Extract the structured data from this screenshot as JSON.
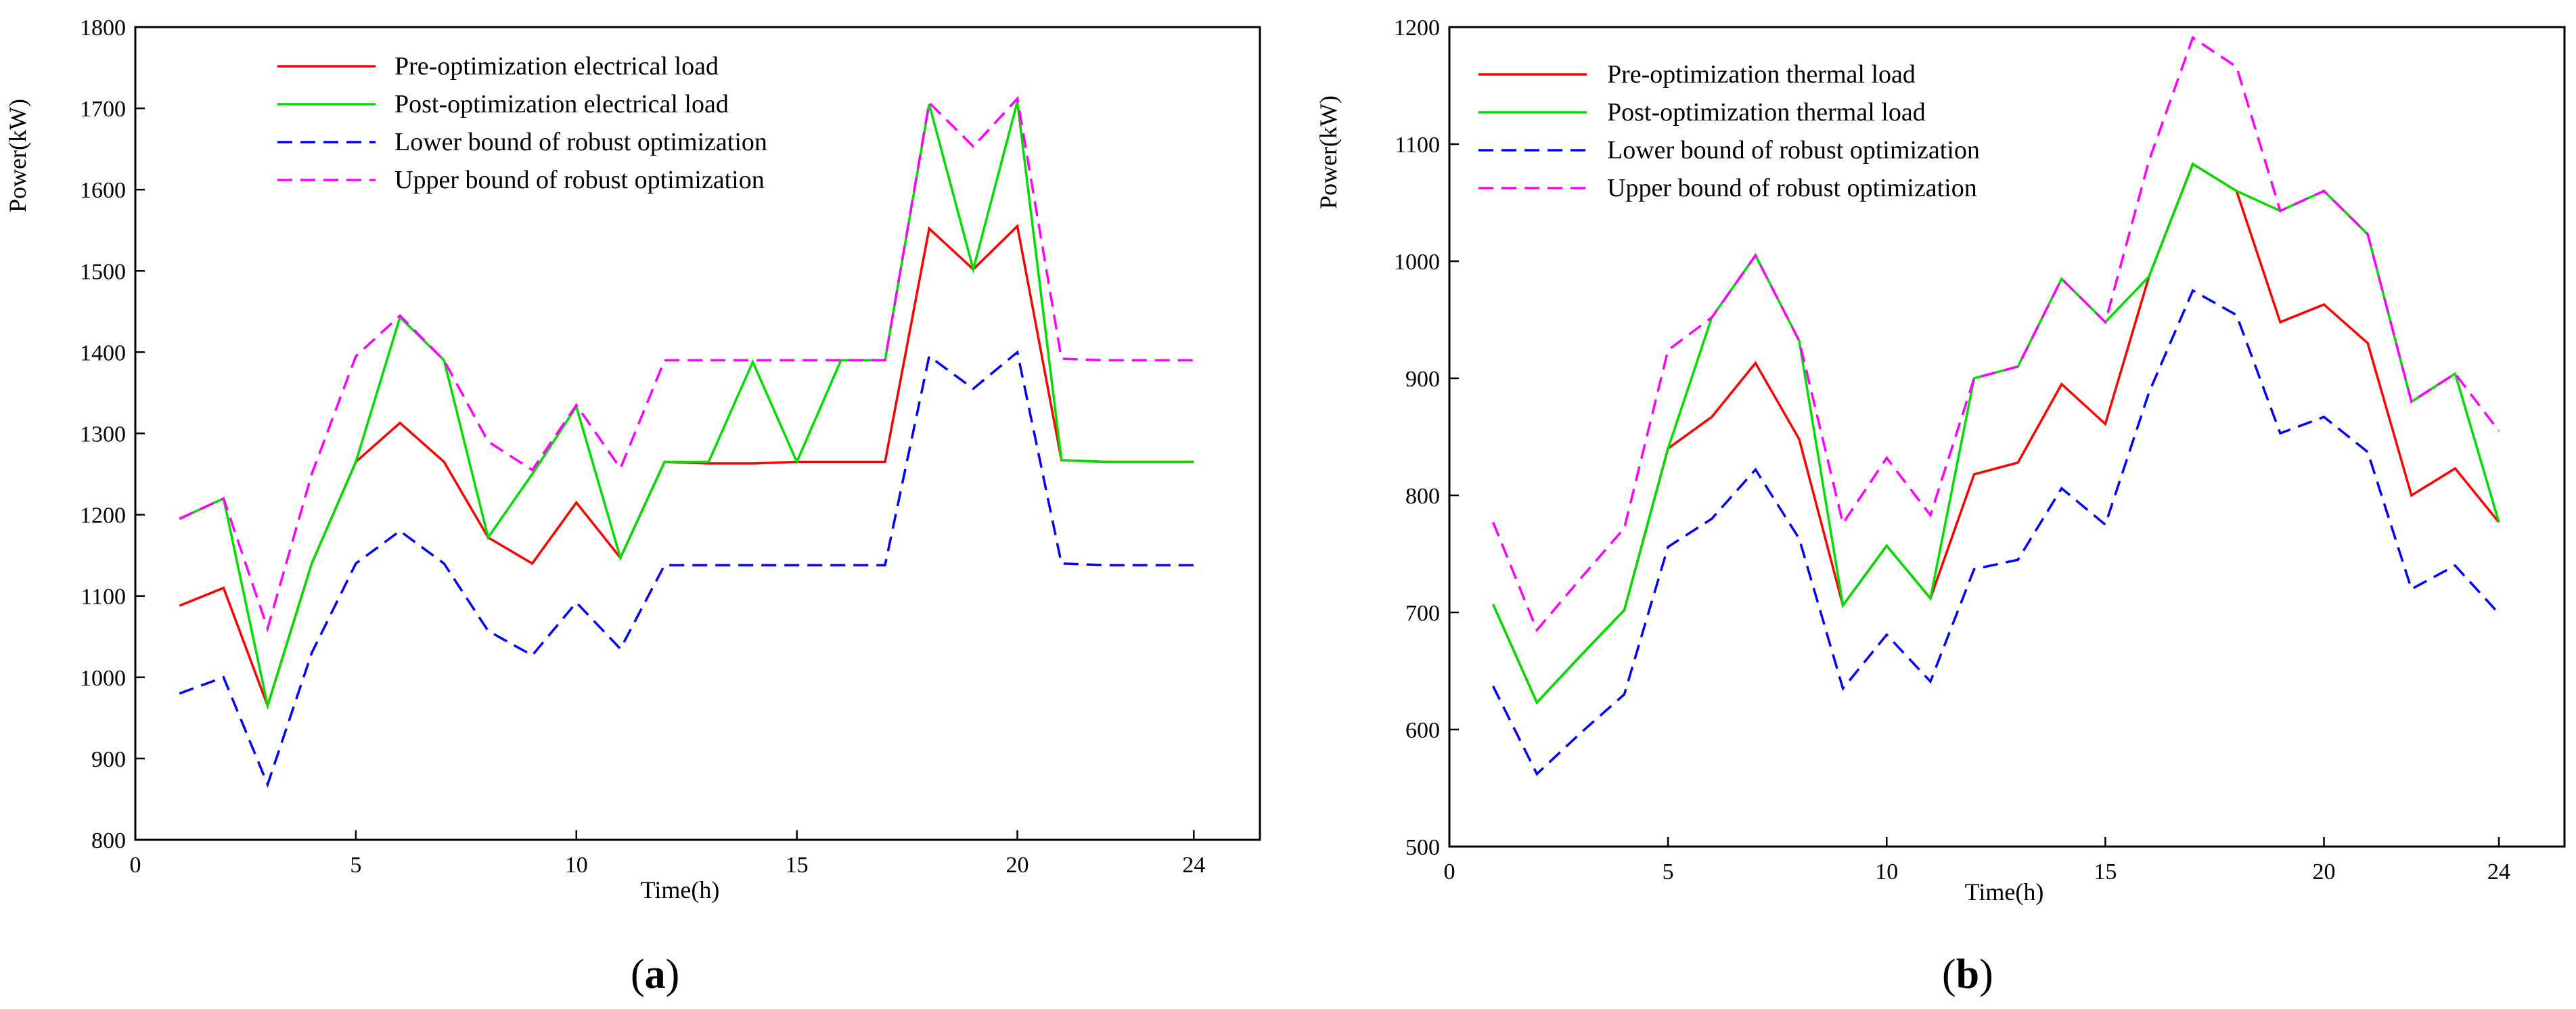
{
  "chart_data": [
    {
      "type": "line",
      "panel": "a",
      "caption_open": "(",
      "caption_letter": "a",
      "caption_close": ")",
      "xlabel": "Time(h)",
      "ylabel": "Power(kW)",
      "xlim": [
        0,
        25.5
      ],
      "ylim": [
        800,
        1800
      ],
      "xticks": [
        0,
        5,
        10,
        15,
        20,
        24
      ],
      "yticks": [
        800,
        900,
        1000,
        1100,
        1200,
        1300,
        1400,
        1500,
        1600,
        1700,
        1800
      ],
      "legend_position": "top-left",
      "x": [
        1,
        2,
        3,
        4,
        5,
        6,
        7,
        8,
        9,
        10,
        11,
        12,
        13,
        14,
        15,
        16,
        17,
        18,
        19,
        20,
        21,
        22,
        23,
        24
      ],
      "series": [
        {
          "name": "Pre-optimization electrical load",
          "color": "#ff0000",
          "dash": "solid",
          "values": [
            1088,
            1110,
            965,
            1140,
            1265,
            1313,
            1265,
            1172,
            1140,
            1215,
            1147,
            1265,
            1263,
            1263,
            1265,
            1265,
            1265,
            1552,
            1502,
            1555,
            1267,
            1265,
            1265,
            1265
          ]
        },
        {
          "name": "Post-optimization electrical load",
          "color": "#00dd00",
          "dash": "solid",
          "values": [
            1195,
            1220,
            965,
            1140,
            1265,
            1443,
            1390,
            1172,
            1250,
            1333,
            1147,
            1265,
            1265,
            1388,
            1265,
            1390,
            1390,
            1705,
            1502,
            1708,
            1267,
            1265,
            1265,
            1265
          ]
        },
        {
          "name": "Lower bound of robust optimization",
          "color": "#0000ff",
          "dash": "dashed",
          "values": [
            980,
            1000,
            868,
            1030,
            1140,
            1180,
            1140,
            1057,
            1027,
            1092,
            1035,
            1138,
            1138,
            1138,
            1138,
            1138,
            1138,
            1395,
            1355,
            1400,
            1140,
            1138,
            1138,
            1138
          ]
        },
        {
          "name": "Upper bound of robust optimization",
          "color": "#ff00ff",
          "dash": "dashed",
          "values": [
            1195,
            1220,
            1060,
            1250,
            1395,
            1445,
            1390,
            1290,
            1255,
            1335,
            1257,
            1390,
            1390,
            1390,
            1390,
            1390,
            1390,
            1707,
            1653,
            1712,
            1392,
            1390,
            1390,
            1390
          ]
        }
      ]
    },
    {
      "type": "line",
      "panel": "b",
      "caption_open": "(",
      "caption_letter": "b",
      "caption_close": ")",
      "xlabel": "Time(h)",
      "ylabel": "Power(kW)",
      "xlim": [
        0,
        25.5
      ],
      "ylim": [
        500,
        1200
      ],
      "xticks": [
        0,
        5,
        10,
        15,
        20,
        24
      ],
      "yticks": [
        500,
        600,
        700,
        800,
        900,
        1000,
        1100,
        1200
      ],
      "legend_position": "top-left",
      "x": [
        1,
        2,
        3,
        4,
        5,
        6,
        7,
        8,
        9,
        10,
        11,
        12,
        13,
        14,
        15,
        16,
        17,
        18,
        19,
        20,
        21,
        22,
        23,
        24
      ],
      "series": [
        {
          "name": "Pre-optimization thermal load",
          "color": "#ff0000",
          "dash": "solid",
          "values": [
            707,
            623,
            663,
            702,
            840,
            867,
            913,
            848,
            706,
            757,
            712,
            818,
            828,
            895,
            861,
            987,
            1083,
            1060,
            948,
            963,
            930,
            800,
            823,
            777
          ]
        },
        {
          "name": "Post-optimization thermal load",
          "color": "#00dd00",
          "dash": "solid",
          "values": [
            707,
            623,
            663,
            702,
            840,
            952,
            1005,
            932,
            706,
            757,
            712,
            900,
            910,
            985,
            948,
            987,
            1083,
            1060,
            1043,
            1060,
            1023,
            880,
            904,
            777
          ]
        },
        {
          "name": "Lower bound of robust optimization",
          "color": "#0000ff",
          "dash": "dashed",
          "values": [
            637,
            562,
            597,
            630,
            756,
            780,
            822,
            763,
            635,
            681,
            641,
            737,
            745,
            806,
            775,
            888,
            975,
            954,
            853,
            867,
            837,
            720,
            740,
            699
          ]
        },
        {
          "name": "Upper bound of robust optimization",
          "color": "#ff00ff",
          "dash": "dashed",
          "values": [
            777,
            685,
            729,
            772,
            924,
            952,
            1005,
            932,
            776,
            832,
            783,
            900,
            910,
            985,
            948,
            1086,
            1191,
            1166,
            1043,
            1060,
            1023,
            880,
            904,
            855
          ]
        }
      ]
    }
  ]
}
